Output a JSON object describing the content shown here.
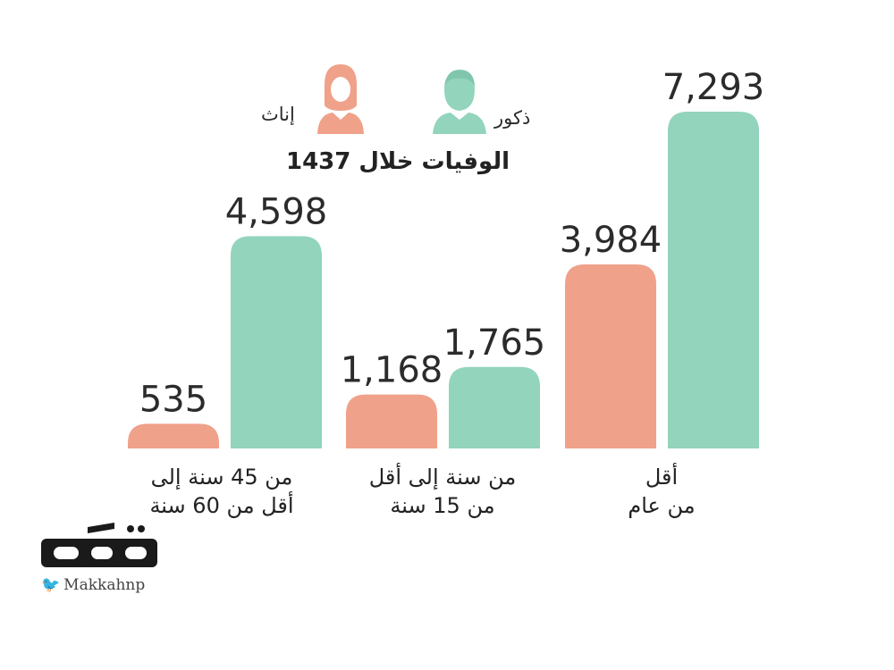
{
  "chart_data": {
    "type": "bar",
    "title": "الوفيات خلال 1437",
    "categories": [
      "من 45 سنة إلى\nأقل من 60 سنة",
      "من سنة إلى أقل\nمن 15 سنة",
      "أقل\nمن عام"
    ],
    "series": [
      {
        "name": "إناث",
        "color": "#f0a18a",
        "values": [
          535,
          1168,
          3984
        ]
      },
      {
        "name": "ذكور",
        "color": "#92d4bc",
        "values": [
          4598,
          1765,
          7293
        ]
      }
    ],
    "value_labels": [
      [
        "535",
        "1,168",
        "3,984"
      ],
      [
        "4,598",
        "1,765",
        "7,293"
      ]
    ],
    "ylim": [
      0,
      7293
    ],
    "legend": [
      {
        "label": "إناث",
        "icon": "female-person-icon",
        "color": "#f0a18a"
      },
      {
        "label": "ذكور",
        "icon": "male-person-icon",
        "color": "#92d4bc"
      }
    ]
  },
  "branding": {
    "logo_text": "مكة",
    "handle": "Makkahnp",
    "bird_icon": "twitter-bird-icon"
  }
}
